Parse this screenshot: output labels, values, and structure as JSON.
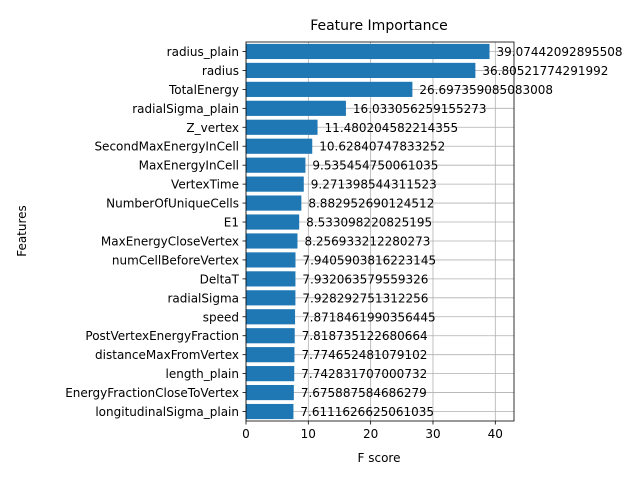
{
  "chart_data": {
    "type": "bar",
    "orientation": "horizontal",
    "title": "Feature Importance",
    "xlabel": "F score",
    "ylabel": "Features",
    "xlim": [
      0,
      43
    ],
    "xticks": [
      0,
      10,
      20,
      30,
      40
    ],
    "grid": true,
    "bar_color": "#1f77b4",
    "series": [
      {
        "categories": [
          "radius_plain",
          "radius",
          "TotalEnergy",
          "radialSigma_plain",
          "Z_vertex",
          "SecondMaxEnergyInCell",
          "MaxEnergyInCell",
          "VertexTime",
          "NumberOfUniqueCells",
          "E1",
          "MaxEnergyCloseVertex",
          "numCellBeforeVertex",
          "DeltaT",
          "radialSigma",
          "speed",
          "PostVertexEnergyFraction",
          "distanceMaxFromVertex",
          "length_plain",
          "EnergyFractionCloseToVertex",
          "longitudinalSigma_plain"
        ],
        "values": [
          39.07442092895508,
          36.80521774291992,
          26.697359085083008,
          16.033056259155273,
          11.480204582214355,
          10.62840747833252,
          9.535454750061035,
          9.271398544311523,
          8.882952690124512,
          8.533098220825195,
          8.256933212280273,
          7.9405903816223145,
          7.932063579559326,
          7.928292751312256,
          7.8718461990356445,
          7.818735122680664,
          7.774652481079102,
          7.742831707000732,
          7.675887584686279,
          7.6111626625061035
        ],
        "labels": [
          "39.07442092895508",
          "36.80521774291992",
          "26.697359085083008",
          "16.033056259155273",
          "11.480204582214355",
          "10.62840747833252",
          "9.535454750061035",
          "9.271398544311523",
          "8.882952690124512",
          "8.533098220825195",
          "8.256933212280273",
          "7.9405903816223145",
          "7.932063579559326",
          "7.928292751312256",
          "7.8718461990356445",
          "7.818735122680664",
          "7.774652481079102",
          "7.742831707000732",
          "7.675887584686279",
          "7.6111626625061035"
        ]
      }
    ]
  }
}
